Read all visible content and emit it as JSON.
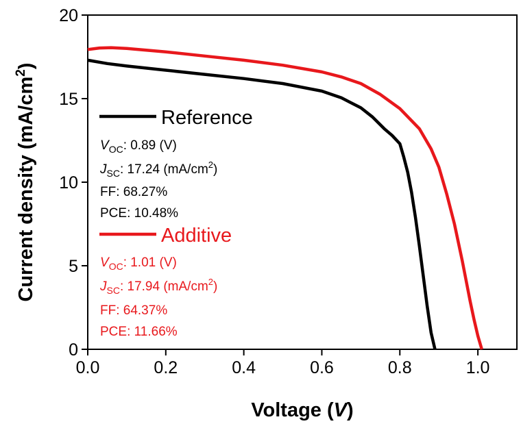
{
  "chart_data": {
    "type": "line",
    "xlabel": "Voltage",
    "xlabel_unit": "V",
    "ylabel": "Current density (mA/cm",
    "ylabel_sup": "2",
    "ylabel_close": ")",
    "xlim": [
      0,
      1.1
    ],
    "ylim": [
      0,
      20
    ],
    "xticks": [
      0.0,
      0.2,
      0.4,
      0.6,
      0.8,
      1.0
    ],
    "xtick_labels": [
      "0.0",
      "0.2",
      "0.4",
      "0.6",
      "0.8",
      "1.0"
    ],
    "yticks": [
      0,
      5,
      10,
      15,
      20
    ],
    "ytick_labels": [
      "0",
      "5",
      "10",
      "15",
      "20"
    ],
    "grid": false,
    "legend_position": "left",
    "series": [
      {
        "name": "Reference",
        "color": "#000000",
        "x": [
          0.0,
          0.05,
          0.1,
          0.2,
          0.3,
          0.4,
          0.5,
          0.6,
          0.65,
          0.7,
          0.73,
          0.76,
          0.78,
          0.8,
          0.81,
          0.82,
          0.83,
          0.84,
          0.85,
          0.86,
          0.87,
          0.88,
          0.89
        ],
        "y": [
          17.3,
          17.1,
          16.95,
          16.7,
          16.45,
          16.2,
          15.9,
          15.45,
          15.05,
          14.45,
          13.9,
          13.2,
          12.8,
          12.3,
          11.5,
          10.6,
          9.4,
          7.9,
          6.2,
          4.4,
          2.6,
          1.0,
          0.0
        ],
        "stats": {
          "voc_label": "V",
          "voc_sub": "OC",
          "voc_value": ": 0.89 (V)",
          "jsc_label": "J",
          "jsc_sub": "SC",
          "jsc_value": ": 17.24 (mA/cm",
          "jsc_sup": "2",
          "jsc_close": ")",
          "ff": "FF: 68.27%",
          "pce": "PCE: 10.48%"
        }
      },
      {
        "name": "Additive",
        "color": "#e8181c",
        "x": [
          0.0,
          0.03,
          0.06,
          0.1,
          0.2,
          0.3,
          0.4,
          0.5,
          0.6,
          0.65,
          0.7,
          0.75,
          0.8,
          0.85,
          0.88,
          0.9,
          0.92,
          0.94,
          0.96,
          0.98,
          0.99,
          1.0,
          1.01
        ],
        "y": [
          17.94,
          18.03,
          18.05,
          18.0,
          17.8,
          17.55,
          17.3,
          17.0,
          16.6,
          16.3,
          15.9,
          15.25,
          14.4,
          13.2,
          12.0,
          10.9,
          9.3,
          7.5,
          5.3,
          2.9,
          1.8,
          0.8,
          0.0
        ],
        "stats": {
          "voc_label": "V",
          "voc_sub": "OC",
          "voc_value": ": 1.01 (V)",
          "jsc_label": "J",
          "jsc_sub": "SC",
          "jsc_value": ": 17.94 (mA/cm",
          "jsc_sup": "2",
          "jsc_close": ")",
          "ff": "FF: 64.37%",
          "pce": "PCE: 11.66%"
        }
      }
    ]
  }
}
